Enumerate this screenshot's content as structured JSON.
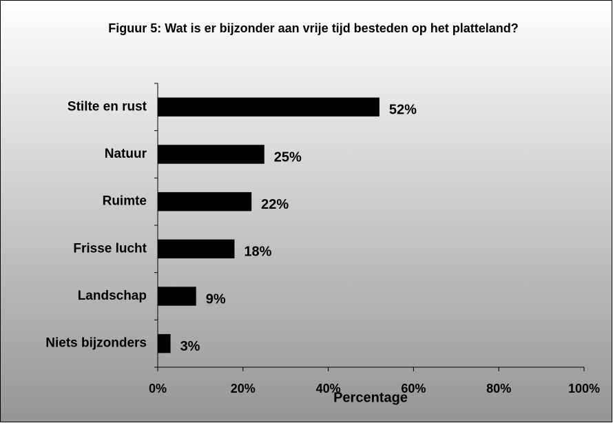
{
  "chart_data": {
    "type": "bar",
    "orientation": "horizontal",
    "title": "Figuur 5: Wat is er bijzonder aan vrije tijd besteden op het platteland?",
    "categories": [
      "Stilte en rust",
      "Natuur",
      "Ruimte",
      "Frisse lucht",
      "Landschap",
      "Niets bijzonders"
    ],
    "values": [
      52,
      25,
      22,
      18,
      9,
      3
    ],
    "value_labels": [
      "52%",
      "25%",
      "22%",
      "18%",
      "9%",
      "3%"
    ],
    "color": "#000000",
    "xlabel": "Percentage",
    "xlim": [
      0,
      100
    ],
    "xticks": [
      {
        "value": 0,
        "label": "0%"
      },
      {
        "value": 20,
        "label": "20%"
      },
      {
        "value": 40,
        "label": "40%"
      },
      {
        "value": 60,
        "label": "60%"
      },
      {
        "value": 80,
        "label": "80%"
      },
      {
        "value": 100,
        "label": "100%"
      }
    ]
  }
}
